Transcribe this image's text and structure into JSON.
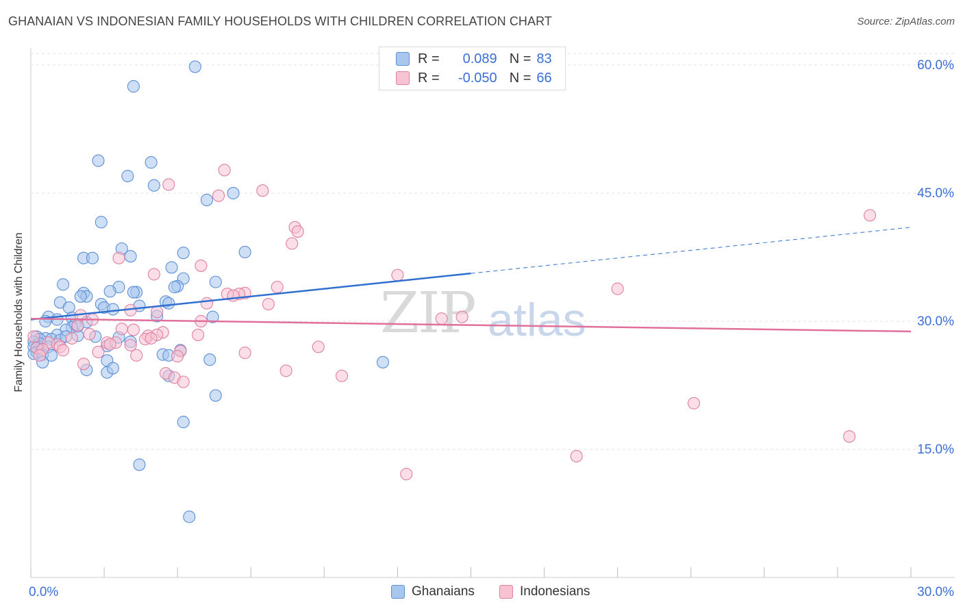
{
  "title": "GHANAIAN VS INDONESIAN FAMILY HOUSEHOLDS WITH CHILDREN CORRELATION CHART",
  "source": "Source: ZipAtlas.com",
  "watermark": {
    "zip": "ZIP",
    "atlas": "atlas"
  },
  "legend": {
    "rows": [
      {
        "r_label": "R =",
        "r_value": "0.089",
        "n_label": "N =",
        "n_value": "83",
        "color": "#a8c6ee",
        "border": "#5b8fd6"
      },
      {
        "r_label": "R =",
        "r_value": "-0.050",
        "n_label": "N =",
        "n_value": "66",
        "color": "#f7c3d3",
        "border": "#e07fa0"
      }
    ],
    "bottom": [
      "Ghanaians",
      "Indonesians"
    ]
  },
  "chart_data": {
    "type": "scatter",
    "title": "GHANAIAN VS INDONESIAN FAMILY HOUSEHOLDS WITH CHILDREN CORRELATION CHART",
    "xlabel": "",
    "ylabel": "Family Households with Children",
    "xlim": [
      0,
      30
    ],
    "ylim": [
      0,
      62
    ],
    "x_tick_labels": [
      "0.0%",
      "30.0%"
    ],
    "y_ticks": [
      15,
      30,
      45,
      60
    ],
    "y_tick_labels": [
      "15.0%",
      "30.0%",
      "45.0%",
      "60.0%"
    ],
    "grid": true,
    "series": [
      {
        "name": "Ghanaians",
        "color": "#a8c6ee",
        "edge": "#5b8fd6",
        "trend": {
          "x0": 0,
          "y0": 30.2,
          "x1": 15,
          "y1": 35.6,
          "x_end": 30,
          "y_end": 41,
          "style_after": "dashed"
        },
        "points": [
          [
            5.6,
            59.8
          ],
          [
            3.5,
            57.5
          ],
          [
            2.3,
            48.8
          ],
          [
            4.1,
            48.6
          ],
          [
            3.3,
            47
          ],
          [
            4.2,
            45.9
          ],
          [
            6.9,
            45
          ],
          [
            6.0,
            44.2
          ],
          [
            2.4,
            41.6
          ],
          [
            3.1,
            38.5
          ],
          [
            7.3,
            38.1
          ],
          [
            5.2,
            38
          ],
          [
            3.4,
            37.6
          ],
          [
            1.8,
            37.4
          ],
          [
            2.1,
            37.4
          ],
          [
            4.8,
            36.3
          ],
          [
            5.2,
            35
          ],
          [
            6.3,
            34.6
          ],
          [
            1.1,
            34.3
          ],
          [
            3.0,
            34
          ],
          [
            2.7,
            33.5
          ],
          [
            3.6,
            33.4
          ],
          [
            5.0,
            34.1
          ],
          [
            4.9,
            34
          ],
          [
            1.8,
            33.3
          ],
          [
            1.9,
            32.9
          ],
          [
            3.5,
            33.4
          ],
          [
            1.7,
            32.9
          ],
          [
            2.4,
            32
          ],
          [
            1.0,
            32.2
          ],
          [
            4.6,
            32.3
          ],
          [
            4.7,
            32.1
          ],
          [
            2.5,
            31.6
          ],
          [
            3.7,
            31.8
          ],
          [
            1.3,
            31.6
          ],
          [
            2.8,
            31.4
          ],
          [
            0.6,
            30.5
          ],
          [
            1.4,
            30.4
          ],
          [
            0.9,
            30.2
          ],
          [
            0.5,
            30
          ],
          [
            1.9,
            29.9
          ],
          [
            1.5,
            29.6
          ],
          [
            1.6,
            29.4
          ],
          [
            1.4,
            29.3
          ],
          [
            1.2,
            29
          ],
          [
            0.9,
            28.4
          ],
          [
            0.5,
            28
          ],
          [
            0.2,
            28.2
          ],
          [
            0.3,
            27.9
          ],
          [
            0.7,
            27.9
          ],
          [
            1.0,
            27.8
          ],
          [
            1.2,
            28.2
          ],
          [
            1.6,
            28.3
          ],
          [
            2.2,
            28.2
          ],
          [
            0.1,
            27.6
          ],
          [
            0.3,
            27.4
          ],
          [
            0.1,
            27
          ],
          [
            0.2,
            26.8
          ],
          [
            0.6,
            27
          ],
          [
            0.2,
            26.4
          ],
          [
            0.1,
            26.2
          ],
          [
            0.4,
            26.1
          ],
          [
            0.7,
            26
          ],
          [
            2.6,
            27.1
          ],
          [
            3.0,
            28.1
          ],
          [
            3.4,
            27.6
          ],
          [
            4.3,
            30.6
          ],
          [
            6.2,
            30.5
          ],
          [
            0.4,
            25.2
          ],
          [
            2.6,
            25.4
          ],
          [
            4.5,
            26.1
          ],
          [
            4.7,
            26
          ],
          [
            5.1,
            26.6
          ],
          [
            6.1,
            25.5
          ],
          [
            1.9,
            24.3
          ],
          [
            2.6,
            24
          ],
          [
            2.8,
            24.5
          ],
          [
            4.7,
            23.6
          ],
          [
            12.0,
            25.2
          ],
          [
            6.3,
            21.3
          ],
          [
            5.2,
            18.2
          ],
          [
            3.7,
            13.2
          ],
          [
            5.4,
            7.1
          ]
        ]
      },
      {
        "name": "Indonesians",
        "color": "#f7c3d3",
        "edge": "#e07fa0",
        "trend": {
          "x0": 0,
          "y0": 30.3,
          "x1": 30,
          "y1": 28.8
        },
        "points": [
          [
            6.6,
            47.7
          ],
          [
            4.7,
            46
          ],
          [
            7.9,
            45.3
          ],
          [
            6.4,
            44.7
          ],
          [
            28.6,
            42.4
          ],
          [
            9.0,
            41
          ],
          [
            9.1,
            40.5
          ],
          [
            8.9,
            39.1
          ],
          [
            3.0,
            37.4
          ],
          [
            5.8,
            36.5
          ],
          [
            4.2,
            35.5
          ],
          [
            12.5,
            35.4
          ],
          [
            8.4,
            34
          ],
          [
            20.0,
            33.8
          ],
          [
            6.7,
            33.2
          ],
          [
            7.3,
            33.3
          ],
          [
            7.1,
            33.2
          ],
          [
            6.9,
            33
          ],
          [
            6.0,
            32.1
          ],
          [
            8.1,
            32
          ],
          [
            3.4,
            31.3
          ],
          [
            4.3,
            31.1
          ],
          [
            1.7,
            30.7
          ],
          [
            2.1,
            30.2
          ],
          [
            14.0,
            30.3
          ],
          [
            14.7,
            30.5
          ],
          [
            5.8,
            30
          ],
          [
            1.6,
            29.5
          ],
          [
            3.1,
            29.1
          ],
          [
            3.5,
            29
          ],
          [
            4.5,
            28.7
          ],
          [
            5.7,
            28.4
          ],
          [
            0.1,
            28.2
          ],
          [
            2.0,
            28.5
          ],
          [
            4.0,
            28.3
          ],
          [
            4.3,
            28.4
          ],
          [
            2.6,
            27.5
          ],
          [
            2.9,
            27.5
          ],
          [
            0.6,
            27.5
          ],
          [
            0.9,
            27.3
          ],
          [
            1.0,
            27
          ],
          [
            1.4,
            28
          ],
          [
            3.4,
            27.2
          ],
          [
            3.9,
            27.9
          ],
          [
            4.1,
            28
          ],
          [
            0.2,
            26.9
          ],
          [
            0.4,
            26.7
          ],
          [
            1.1,
            26.6
          ],
          [
            2.3,
            26.4
          ],
          [
            5.1,
            26.5
          ],
          [
            3.6,
            26
          ],
          [
            5.0,
            25.9
          ],
          [
            9.8,
            27
          ],
          [
            7.3,
            26.3
          ],
          [
            1.8,
            25
          ],
          [
            4.6,
            23.9
          ],
          [
            4.9,
            23.4
          ],
          [
            8.7,
            24.2
          ],
          [
            10.6,
            23.6
          ],
          [
            5.2,
            22.9
          ],
          [
            22.6,
            20.4
          ],
          [
            27.9,
            16.5
          ],
          [
            12.8,
            12.1
          ],
          [
            18.6,
            14.2
          ],
          [
            0.3,
            26
          ],
          [
            2.7,
            27.3
          ]
        ]
      }
    ]
  }
}
